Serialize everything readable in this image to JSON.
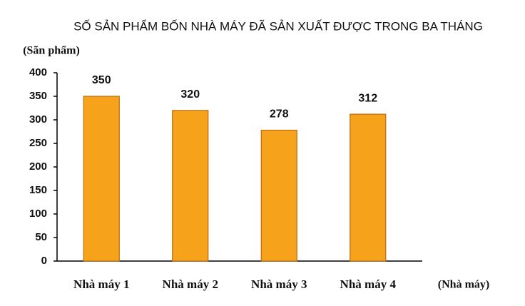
{
  "chart_data": {
    "type": "bar",
    "title": "SỐ SẢN PHẨM BỐN NHÀ MÁY ĐÃ SẢN XUẤT ĐƯỢC TRONG BA THÁNG",
    "y_label": "(Sãn phẩm)",
    "x_label": "(Nhà máy)",
    "categories": [
      "Nhà máy 1",
      "Nhà máy 2",
      "Nhà máy 3",
      "Nhà máy 4"
    ],
    "values": [
      350,
      320,
      278,
      312
    ],
    "color": "#f7a21b",
    "ylim": [
      0,
      400
    ],
    "yticks": [
      0,
      50,
      100,
      150,
      200,
      250,
      300,
      350,
      400
    ],
    "grid": false
  }
}
